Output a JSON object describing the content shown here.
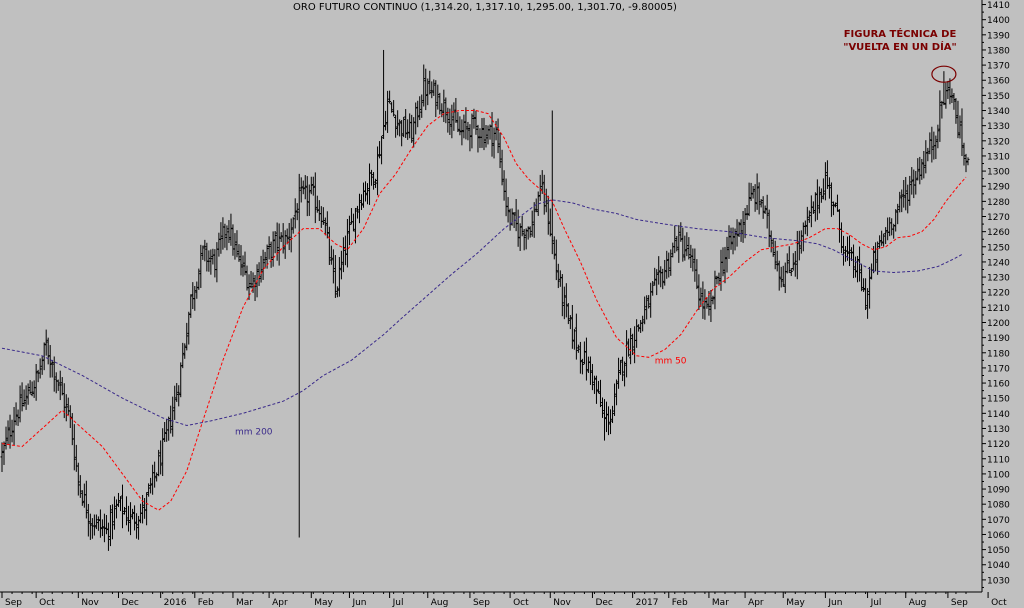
{
  "chart_data": {
    "type": "candlestick",
    "title": "ORO FUTURO CONTINUO (1,314.20, 1,317.10, 1,295.00, 1,301.70, -9.80005)",
    "ylim": [
      1022,
      1413
    ],
    "y_ticks": [
      1030,
      1040,
      1050,
      1060,
      1070,
      1080,
      1090,
      1100,
      1110,
      1120,
      1130,
      1140,
      1150,
      1160,
      1170,
      1180,
      1190,
      1200,
      1210,
      1220,
      1230,
      1240,
      1250,
      1260,
      1270,
      1280,
      1290,
      1300,
      1310,
      1320,
      1330,
      1340,
      1350,
      1360,
      1370,
      1380,
      1390,
      1400,
      1410
    ],
    "x_ticks": [
      {
        "label": "Sep",
        "i": 0
      },
      {
        "label": "Oct",
        "i": 17
      },
      {
        "label": "Nov",
        "i": 38
      },
      {
        "label": "Dec",
        "i": 58
      },
      {
        "label": "2016",
        "i": 79
      },
      {
        "label": "Feb",
        "i": 96
      },
      {
        "label": "Mar",
        "i": 115
      },
      {
        "label": "Apr",
        "i": 133
      },
      {
        "label": "May",
        "i": 154
      },
      {
        "label": "Jun",
        "i": 173
      },
      {
        "label": "Jul",
        "i": 193
      },
      {
        "label": "Aug",
        "i": 212
      },
      {
        "label": "Sep",
        "i": 233
      },
      {
        "label": "Oct",
        "i": 253
      },
      {
        "label": "Nov",
        "i": 273
      },
      {
        "label": "Dec",
        "i": 294
      },
      {
        "label": "2017",
        "i": 314
      },
      {
        "label": "Feb",
        "i": 332
      },
      {
        "label": "Mar",
        "i": 352
      },
      {
        "label": "Apr",
        "i": 370
      },
      {
        "label": "May",
        "i": 389
      },
      {
        "label": "Jun",
        "i": 410
      },
      {
        "label": "Jul",
        "i": 431
      },
      {
        "label": "Aug",
        "i": 450
      },
      {
        "label": "Sep",
        "i": 471
      },
      {
        "label": "Oct",
        "i": 491
      }
    ],
    "num_bars": 482,
    "price_anchors": [
      [
        0,
        1112
      ],
      [
        6,
        1138
      ],
      [
        12,
        1150
      ],
      [
        18,
        1165
      ],
      [
        22,
        1185
      ],
      [
        28,
        1160
      ],
      [
        34,
        1135
      ],
      [
        38,
        1095
      ],
      [
        44,
        1070
      ],
      [
        52,
        1062
      ],
      [
        58,
        1080
      ],
      [
        64,
        1070
      ],
      [
        70,
        1075
      ],
      [
        76,
        1098
      ],
      [
        82,
        1125
      ],
      [
        88,
        1160
      ],
      [
        94,
        1215
      ],
      [
        100,
        1245
      ],
      [
        106,
        1240
      ],
      [
        112,
        1265
      ],
      [
        118,
        1240
      ],
      [
        124,
        1225
      ],
      [
        130,
        1240
      ],
      [
        136,
        1252
      ],
      [
        142,
        1255
      ],
      [
        148,
        1282
      ],
      [
        154,
        1285
      ],
      [
        160,
        1270
      ],
      [
        166,
        1220
      ],
      [
        172,
        1255
      ],
      [
        178,
        1282
      ],
      [
        186,
        1300
      ],
      [
        192,
        1345
      ],
      [
        198,
        1330
      ],
      [
        204,
        1325
      ],
      [
        210,
        1355
      ],
      [
        216,
        1350
      ],
      [
        222,
        1340
      ],
      [
        228,
        1325
      ],
      [
        234,
        1330
      ],
      [
        240,
        1325
      ],
      [
        246,
        1325
      ],
      [
        252,
        1270
      ],
      [
        258,
        1260
      ],
      [
        264,
        1265
      ],
      [
        268,
        1290
      ],
      [
        272,
        1270
      ],
      [
        276,
        1235
      ],
      [
        282,
        1200
      ],
      [
        288,
        1180
      ],
      [
        294,
        1165
      ],
      [
        300,
        1135
      ],
      [
        304,
        1140
      ],
      [
        308,
        1170
      ],
      [
        312,
        1185
      ],
      [
        318,
        1200
      ],
      [
        324,
        1220
      ],
      [
        330,
        1235
      ],
      [
        336,
        1255
      ],
      [
        342,
        1245
      ],
      [
        348,
        1215
      ],
      [
        352,
        1205
      ],
      [
        356,
        1230
      ],
      [
        362,
        1250
      ],
      [
        368,
        1265
      ],
      [
        374,
        1285
      ],
      [
        378,
        1280
      ],
      [
        384,
        1250
      ],
      [
        388,
        1230
      ],
      [
        392,
        1235
      ],
      [
        398,
        1255
      ],
      [
        404,
        1275
      ],
      [
        410,
        1295
      ],
      [
        414,
        1280
      ],
      [
        420,
        1245
      ],
      [
        426,
        1235
      ],
      [
        430,
        1215
      ],
      [
        434,
        1240
      ],
      [
        440,
        1260
      ],
      [
        446,
        1275
      ],
      [
        452,
        1290
      ],
      [
        458,
        1305
      ],
      [
        464,
        1320
      ],
      [
        468,
        1345
      ],
      [
        472,
        1355
      ],
      [
        476,
        1330
      ],
      [
        480,
        1305
      ],
      [
        481,
        1302
      ]
    ],
    "spikes": [
      [
        23,
        1190
      ],
      [
        190,
        1380
      ],
      [
        274,
        1340
      ],
      [
        469,
        1366
      ],
      [
        300,
        1122
      ],
      [
        148,
        1058
      ]
    ],
    "series": [
      {
        "name": "mm 50",
        "color": "#ff0000",
        "dash": "3,2",
        "values": [
          [
            0,
            1120
          ],
          [
            10,
            1118
          ],
          [
            20,
            1130
          ],
          [
            30,
            1142
          ],
          [
            40,
            1130
          ],
          [
            50,
            1118
          ],
          [
            60,
            1100
          ],
          [
            70,
            1082
          ],
          [
            78,
            1076
          ],
          [
            84,
            1082
          ],
          [
            92,
            1102
          ],
          [
            100,
            1135
          ],
          [
            110,
            1175
          ],
          [
            120,
            1210
          ],
          [
            130,
            1235
          ],
          [
            140,
            1250
          ],
          [
            150,
            1262
          ],
          [
            158,
            1262
          ],
          [
            166,
            1252
          ],
          [
            172,
            1248
          ],
          [
            180,
            1262
          ],
          [
            188,
            1285
          ],
          [
            196,
            1298
          ],
          [
            204,
            1315
          ],
          [
            212,
            1330
          ],
          [
            220,
            1338
          ],
          [
            228,
            1340
          ],
          [
            236,
            1340
          ],
          [
            242,
            1338
          ],
          [
            250,
            1322
          ],
          [
            256,
            1305
          ],
          [
            262,
            1295
          ],
          [
            268,
            1288
          ],
          [
            274,
            1280
          ],
          [
            280,
            1262
          ],
          [
            288,
            1240
          ],
          [
            296,
            1215
          ],
          [
            306,
            1190
          ],
          [
            316,
            1178
          ],
          [
            322,
            1177
          ],
          [
            330,
            1182
          ],
          [
            338,
            1192
          ],
          [
            346,
            1208
          ],
          [
            354,
            1222
          ],
          [
            362,
            1230
          ],
          [
            370,
            1240
          ],
          [
            378,
            1248
          ],
          [
            386,
            1250
          ],
          [
            394,
            1252
          ],
          [
            402,
            1256
          ],
          [
            410,
            1262
          ],
          [
            416,
            1262
          ],
          [
            422,
            1258
          ],
          [
            428,
            1252
          ],
          [
            434,
            1248
          ],
          [
            440,
            1250
          ],
          [
            446,
            1256
          ],
          [
            452,
            1257
          ],
          [
            458,
            1260
          ],
          [
            464,
            1268
          ],
          [
            470,
            1280
          ],
          [
            476,
            1290
          ],
          [
            480,
            1296
          ]
        ]
      },
      {
        "name": "mm 200",
        "color": "#3a2a8a",
        "dash": "3,2",
        "values": [
          [
            0,
            1183
          ],
          [
            20,
            1178
          ],
          [
            40,
            1165
          ],
          [
            60,
            1150
          ],
          [
            80,
            1137
          ],
          [
            92,
            1132
          ],
          [
            104,
            1135
          ],
          [
            120,
            1140
          ],
          [
            140,
            1148
          ],
          [
            150,
            1155
          ],
          [
            160,
            1165
          ],
          [
            174,
            1175
          ],
          [
            190,
            1192
          ],
          [
            200,
            1204
          ],
          [
            212,
            1218
          ],
          [
            224,
            1232
          ],
          [
            236,
            1245
          ],
          [
            250,
            1262
          ],
          [
            266,
            1278
          ],
          [
            274,
            1281
          ],
          [
            284,
            1279
          ],
          [
            294,
            1275
          ],
          [
            306,
            1272
          ],
          [
            316,
            1268
          ],
          [
            330,
            1265
          ],
          [
            346,
            1262
          ],
          [
            362,
            1260
          ],
          [
            380,
            1256
          ],
          [
            396,
            1254
          ],
          [
            406,
            1252
          ],
          [
            414,
            1248
          ],
          [
            424,
            1241
          ],
          [
            434,
            1234
          ],
          [
            444,
            1233
          ],
          [
            456,
            1234
          ],
          [
            466,
            1237
          ],
          [
            474,
            1242
          ],
          [
            478,
            1245
          ]
        ]
      }
    ],
    "labels": [
      {
        "text": "mm 50",
        "color": "#ff0000"
      },
      {
        "text": "mm 200",
        "color": "#3a2a8a"
      }
    ],
    "annotation": {
      "line1": "FIGURA TÉCNICA DE",
      "line2": "\"VUELTA EN UN DÍA\"",
      "color": "#7a0000"
    }
  }
}
